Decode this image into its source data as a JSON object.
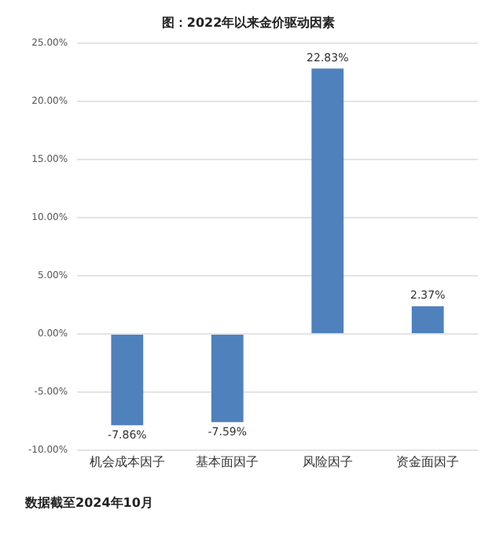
{
  "chart_data": {
    "type": "bar",
    "title": "图：2022年以来金价驱动因素",
    "categories": [
      "机会成本因子",
      "基本面因子",
      "风险因子",
      "资金面因子"
    ],
    "values": [
      -7.86,
      -7.59,
      22.83,
      2.37
    ],
    "value_labels": [
      "-7.86%",
      "-7.59%",
      "22.83%",
      "2.37%"
    ],
    "color": "#4f81bd",
    "ylim": [
      -10,
      25
    ],
    "yticks": [
      {
        "value": -10,
        "label": "-10.00%"
      },
      {
        "value": -5,
        "label": "-5.00%"
      },
      {
        "value": 0,
        "label": "0.00%"
      },
      {
        "value": 5,
        "label": "5.00%"
      },
      {
        "value": 10,
        "label": "10.00%"
      },
      {
        "value": 15,
        "label": "15.00%"
      },
      {
        "value": 20,
        "label": "20.00%"
      },
      {
        "value": 25,
        "label": "25.00%"
      }
    ],
    "grid": "y",
    "annotations": [
      "数据截至2024年10月"
    ]
  }
}
